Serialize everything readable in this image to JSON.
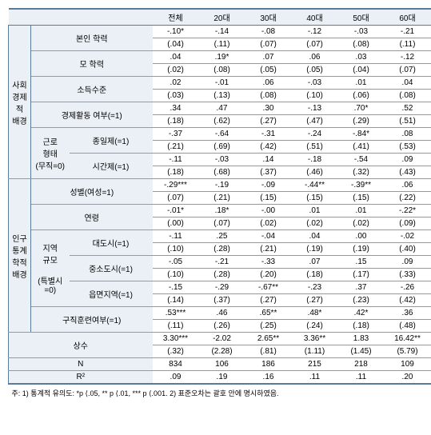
{
  "columns": [
    "전체",
    "20대",
    "30대",
    "40대",
    "50대",
    "60대"
  ],
  "sections": [
    {
      "name": "사회\n경제적\n배경",
      "group_rows": 6,
      "rows": [
        {
          "span": 3,
          "labels": [
            "본인 학력"
          ],
          "est": [
            "-.10*",
            "-.14",
            "-.08",
            "-.12",
            "-.03",
            "-.21"
          ],
          "se": [
            "(.04)",
            "(.11)",
            "(.07)",
            "(.07)",
            "(.08)",
            "(.11)"
          ]
        },
        {
          "span": 3,
          "labels": [
            "모 학력"
          ],
          "est": [
            ".04",
            ".19*",
            ".07",
            ".06",
            ".03",
            "-.12"
          ],
          "se": [
            "(.02)",
            "(.08)",
            "(.05)",
            "(.05)",
            "(.04)",
            "(.07)"
          ]
        },
        {
          "span": 3,
          "labels": [
            "소득수준"
          ],
          "est": [
            ".02",
            "-.01",
            ".06",
            "-.03",
            ".01",
            ".04"
          ],
          "se": [
            "(.03)",
            "(.13)",
            "(.08)",
            "(.10)",
            "(.06)",
            "(.08)"
          ]
        },
        {
          "span": 3,
          "labels": [
            "경제활동 여부(=1)"
          ],
          "est": [
            ".34",
            ".47",
            ".30",
            "-.13",
            ".70*",
            ".52"
          ],
          "se": [
            "(.18)",
            "(.62)",
            "(.27)",
            "(.47)",
            "(.29)",
            "(.51)"
          ]
        },
        {
          "span": 2,
          "pre": {
            "label": "근로\n형태\n(무직=0)",
            "rows": 4
          },
          "labels": [
            "종일제(=1)"
          ],
          "est": [
            "-.37",
            "-.64",
            "-.31",
            "-.24",
            "-.84*",
            ".08"
          ],
          "se": [
            "(.21)",
            "(.69)",
            "(.42)",
            "(.51)",
            "(.41)",
            "(.53)"
          ]
        },
        {
          "span": 2,
          "labels": [
            "시간제(=1)"
          ],
          "est": [
            "-.11",
            "-.03",
            ".14",
            "-.18",
            "-.54",
            ".09"
          ],
          "se": [
            "(.18)",
            "(.68)",
            "(.37)",
            "(.46)",
            "(.32)",
            "(.43)"
          ]
        }
      ]
    },
    {
      "name": "인구\n통계학적\n배경",
      "group_rows": 6,
      "rows": [
        {
          "span": 3,
          "labels": [
            "성별(여성=1)"
          ],
          "est": [
            "-.29***",
            "-.19",
            "-.09",
            "-.44**",
            "-.39**",
            ".06"
          ],
          "se": [
            "(.07)",
            "(.21)",
            "(.15)",
            "(.15)",
            "(.15)",
            "(.22)"
          ]
        },
        {
          "span": 3,
          "labels": [
            "연령"
          ],
          "est": [
            "-.01*",
            ".18*",
            "-.00",
            ".01",
            ".01",
            "-.22*"
          ],
          "se": [
            "(.00)",
            "(.07)",
            "(.02)",
            "(.02)",
            "(.02)",
            "(.09)"
          ]
        },
        {
          "span": 2,
          "pre": {
            "label": "지역\n규모\n\n(특별시=0)",
            "rows": 6
          },
          "labels": [
            "대도시(=1)"
          ],
          "est": [
            "-.11",
            ".25",
            "-.04",
            ".04",
            ".00",
            "-.02"
          ],
          "se": [
            "(.10)",
            "(.28)",
            "(.21)",
            "(.19)",
            "(.19)",
            "(.40)"
          ]
        },
        {
          "span": 2,
          "labels": [
            "중소도시(=1)"
          ],
          "est": [
            "-.05",
            "-.21",
            "-.33",
            ".07",
            ".15",
            ".09"
          ],
          "se": [
            "(.10)",
            "(.28)",
            "(.20)",
            "(.18)",
            "(.17)",
            "(.33)"
          ]
        },
        {
          "span": 2,
          "labels": [
            "읍면지역(=1)"
          ],
          "est": [
            "-.15",
            "-.29",
            "-.67**",
            "-.23",
            ".37",
            "-.26"
          ],
          "se": [
            "(.14)",
            "(.37)",
            "(.27)",
            "(.27)",
            "(.23)",
            "(.42)"
          ]
        },
        {
          "span": 3,
          "labels": [
            "구직훈련여부(=1)"
          ],
          "est": [
            ".53***",
            ".46",
            ".65**",
            ".48*",
            ".42*",
            ".36"
          ],
          "se": [
            "(.11)",
            "(.26)",
            "(.25)",
            "(.24)",
            "(.18)",
            "(.48)"
          ]
        }
      ]
    }
  ],
  "footer_rows": [
    {
      "label": "상수",
      "est": [
        "3.30***",
        "-2.02",
        "2.65**",
        "3.36**",
        "1.83",
        "16.42**"
      ],
      "se": [
        "(.32)",
        "(2.28)",
        "(.81)",
        "(1.11)",
        "(1.45)",
        "(5.79)"
      ]
    },
    {
      "label": "N",
      "vals": [
        "834",
        "106",
        "186",
        "215",
        "218",
        "109"
      ]
    },
    {
      "label": "R²",
      "vals": [
        ".09",
        ".19",
        ".16",
        ".11",
        ".11",
        ".20"
      ]
    }
  ],
  "note": "주: 1) 통계적 유의도:  *p ⟨.05,  ** p ⟨.01,  *** p ⟨.001. 2) 표준오차는 괄호 안에 명시하였음."
}
